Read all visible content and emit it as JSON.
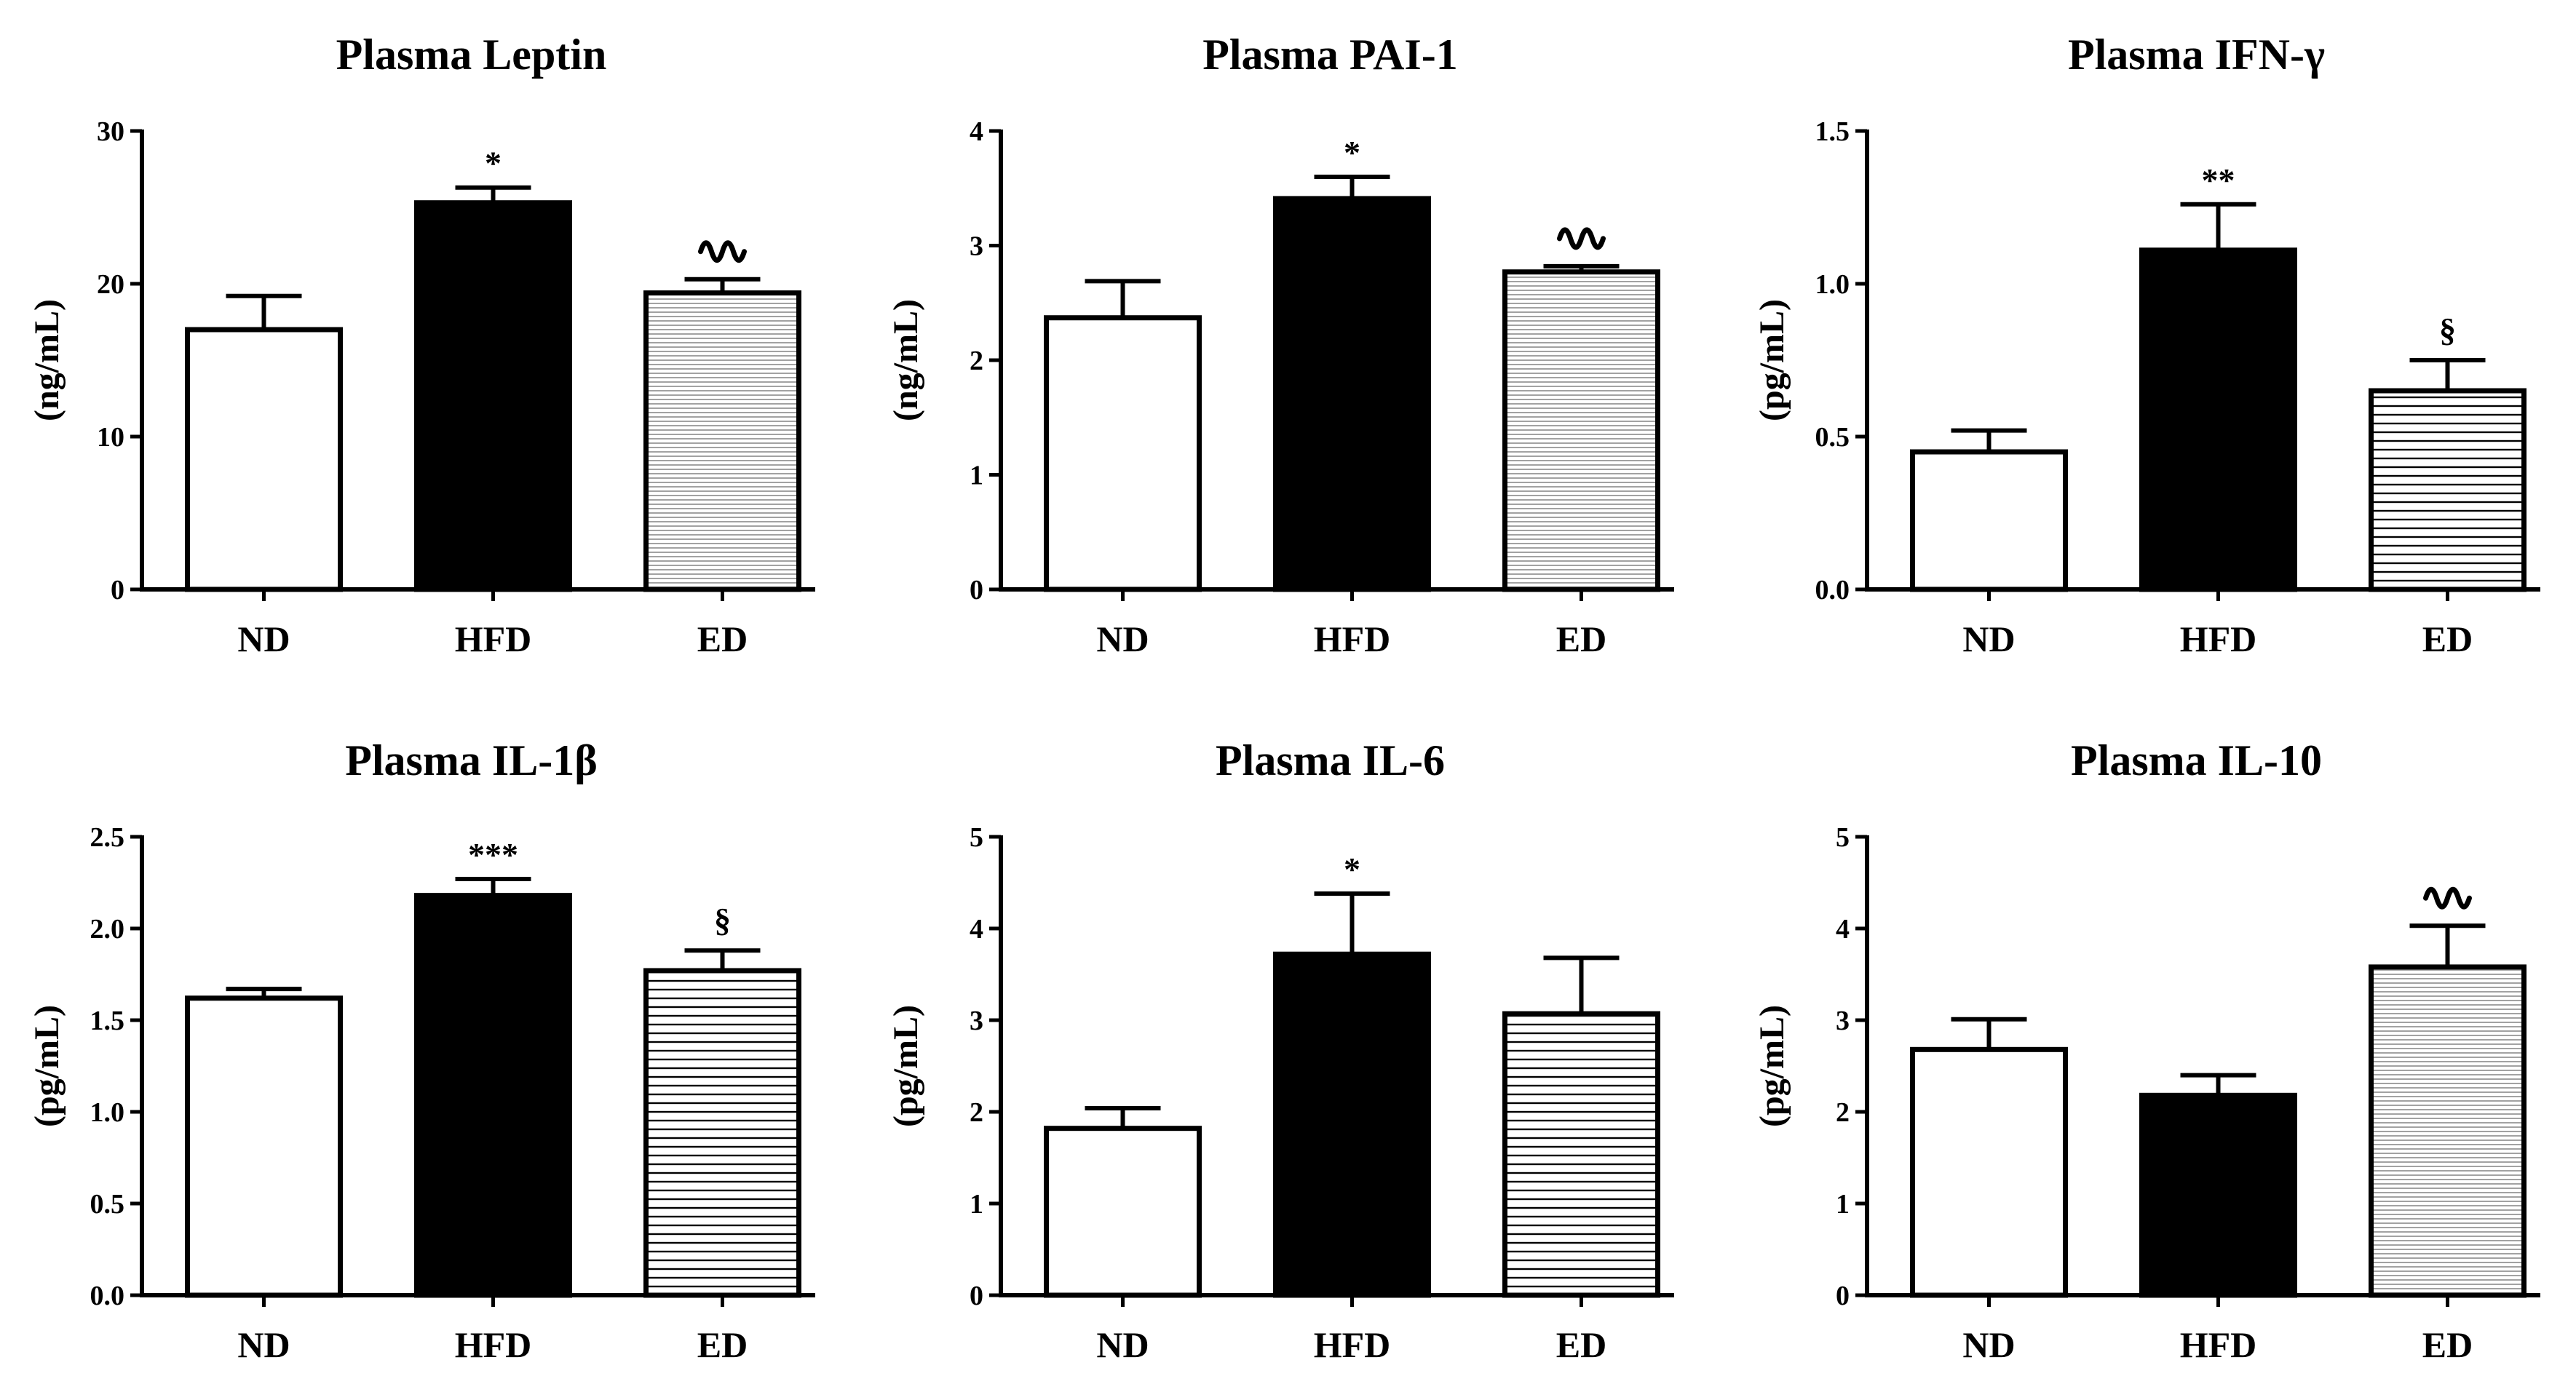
{
  "chart_data": [
    {
      "type": "bar",
      "title": "Plasma Leptin",
      "ylabel": "(ng/mL)",
      "xlabel": "",
      "categories": [
        "ND",
        "HFD",
        "ED"
      ],
      "values": [
        17,
        25.3,
        19.4
      ],
      "errors": [
        2.2,
        1.0,
        0.9
      ],
      "fills": [
        "white",
        "black",
        "hatch-fine"
      ],
      "annotations": [
        "",
        "*",
        "∾"
      ],
      "ylim": [
        0,
        30
      ],
      "yticks": [
        0,
        10,
        20,
        30
      ],
      "ytick_labels": [
        "0",
        "10",
        "20",
        "30"
      ],
      "grid": false
    },
    {
      "type": "bar",
      "title": "Plasma PAI-1",
      "ylabel": "(ng/mL)",
      "xlabel": "",
      "categories": [
        "ND",
        "HFD",
        "ED"
      ],
      "values": [
        2.37,
        3.41,
        2.77
      ],
      "errors": [
        0.32,
        0.19,
        0.05
      ],
      "fills": [
        "white",
        "black",
        "hatch-fine"
      ],
      "annotations": [
        "",
        "*",
        "∾"
      ],
      "ylim": [
        0,
        4
      ],
      "yticks": [
        0,
        1,
        2,
        3,
        4
      ],
      "ytick_labels": [
        "0",
        "1",
        "2",
        "3",
        "4"
      ],
      "grid": false
    },
    {
      "type": "bar",
      "title": "Plasma IFN-γ",
      "ylabel": "(pg/mL)",
      "xlabel": "",
      "categories": [
        "ND",
        "HFD",
        "ED"
      ],
      "values": [
        0.45,
        1.11,
        0.65
      ],
      "errors": [
        0.07,
        0.15,
        0.1
      ],
      "fills": [
        "white",
        "black",
        "hatch-coarse"
      ],
      "annotations": [
        "",
        "**",
        "§"
      ],
      "ylim": [
        0,
        1.5
      ],
      "yticks": [
        0,
        0.5,
        1.0,
        1.5
      ],
      "ytick_labels": [
        "0.0",
        "0.5",
        "1.0",
        "1.5"
      ],
      "grid": false
    },
    {
      "type": "bar",
      "title": "Plasma IL-1β",
      "ylabel": "(pg/mL)",
      "xlabel": "",
      "categories": [
        "ND",
        "HFD",
        "ED"
      ],
      "values": [
        1.62,
        2.18,
        1.77
      ],
      "errors": [
        0.05,
        0.09,
        0.11
      ],
      "fills": [
        "white",
        "black",
        "hatch-coarse"
      ],
      "annotations": [
        "",
        "***",
        "§"
      ],
      "ylim": [
        0,
        2.5
      ],
      "yticks": [
        0,
        0.5,
        1.0,
        1.5,
        2.0,
        2.5
      ],
      "ytick_labels": [
        "0.0",
        "0.5",
        "1.0",
        "1.5",
        "2.0",
        "2.5"
      ],
      "grid": false
    },
    {
      "type": "bar",
      "title": "Plasma IL-6",
      "ylabel": "(pg/mL)",
      "xlabel": "",
      "categories": [
        "ND",
        "HFD",
        "ED"
      ],
      "values": [
        1.82,
        3.72,
        3.07
      ],
      "errors": [
        0.22,
        0.66,
        0.61
      ],
      "fills": [
        "white",
        "black",
        "hatch-coarse"
      ],
      "annotations": [
        "",
        "*",
        ""
      ],
      "ylim": [
        0,
        5
      ],
      "yticks": [
        0,
        1,
        2,
        3,
        4,
        5
      ],
      "ytick_labels": [
        "0",
        "1",
        "2",
        "3",
        "4",
        "5"
      ],
      "grid": false
    },
    {
      "type": "bar",
      "title": "Plasma IL-10",
      "ylabel": "(pg/mL)",
      "xlabel": "",
      "categories": [
        "ND",
        "HFD",
        "ED"
      ],
      "values": [
        2.68,
        2.18,
        3.58
      ],
      "errors": [
        0.33,
        0.22,
        0.45
      ],
      "fills": [
        "white",
        "black",
        "hatch-fine"
      ],
      "annotations": [
        "",
        "",
        "∾"
      ],
      "ylim": [
        0,
        5
      ],
      "yticks": [
        0,
        1,
        2,
        3,
        4,
        5
      ],
      "ytick_labels": [
        "0",
        "1",
        "2",
        "3",
        "4",
        "5"
      ],
      "grid": false
    }
  ]
}
